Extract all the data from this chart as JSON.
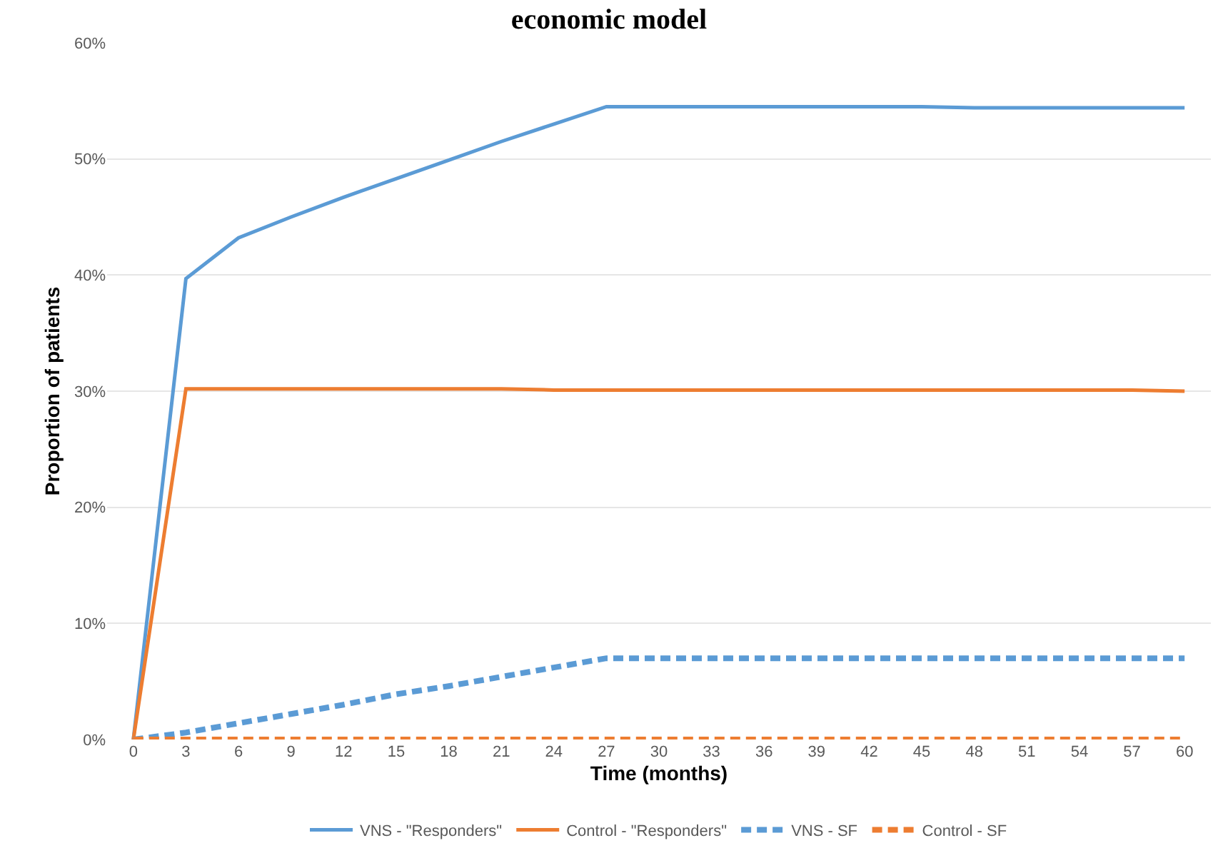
{
  "chart_data": {
    "type": "line",
    "title": "economic model",
    "xlabel": "Time (months)",
    "ylabel": "Proportion of patients",
    "x": [
      0,
      3,
      6,
      9,
      12,
      15,
      18,
      21,
      24,
      27,
      30,
      33,
      36,
      39,
      42,
      45,
      48,
      51,
      54,
      57,
      60
    ],
    "series": [
      {
        "name": "VNS - \"Responders\"",
        "color": "#5b9bd5",
        "line_style": "solid",
        "values": [
          0,
          39.7,
          43.2,
          45.0,
          46.7,
          48.3,
          49.9,
          51.5,
          53.0,
          54.5,
          54.5,
          54.5,
          54.5,
          54.5,
          54.5,
          54.5,
          54.4,
          54.4,
          54.4,
          54.4,
          54.4
        ]
      },
      {
        "name": "Control - \"Responders\"",
        "color": "#ed7d31",
        "line_style": "solid",
        "values": [
          0,
          30.2,
          30.2,
          30.2,
          30.2,
          30.2,
          30.2,
          30.2,
          30.1,
          30.1,
          30.1,
          30.1,
          30.1,
          30.1,
          30.1,
          30.1,
          30.1,
          30.1,
          30.1,
          30.1,
          30.0
        ]
      },
      {
        "name": "VNS - SF",
        "color": "#5b9bd5",
        "line_style": "dashed",
        "values": [
          0,
          0.6,
          1.4,
          2.2,
          3.0,
          3.9,
          4.6,
          5.4,
          6.2,
          7.0,
          7.0,
          7.0,
          7.0,
          7.0,
          7.0,
          7.0,
          7.0,
          7.0,
          7.0,
          7.0,
          7.0
        ]
      },
      {
        "name": "Control - SF",
        "color": "#ed7d31",
        "line_style": "dashed",
        "values": [
          0,
          0,
          0,
          0,
          0,
          0,
          0,
          0,
          0,
          0,
          0,
          0,
          0,
          0,
          0,
          0,
          0,
          0,
          0,
          0,
          0
        ]
      }
    ],
    "xlim": [
      -1.5,
      61.5
    ],
    "xticks": [
      0,
      3,
      6,
      9,
      12,
      15,
      18,
      21,
      24,
      27,
      30,
      33,
      36,
      39,
      42,
      45,
      48,
      51,
      54,
      57,
      60
    ],
    "ylim": [
      0,
      60
    ],
    "yticks": [
      {
        "value": 0,
        "label": "0%"
      },
      {
        "value": 10,
        "label": "10%"
      },
      {
        "value": 20,
        "label": "20%"
      },
      {
        "value": 30,
        "label": "30%"
      },
      {
        "value": 40,
        "label": "40%"
      },
      {
        "value": 50,
        "label": "50%"
      },
      {
        "value": 60,
        "label": "60%"
      }
    ],
    "grid": "y",
    "legend": "bottom",
    "marker": "none"
  }
}
